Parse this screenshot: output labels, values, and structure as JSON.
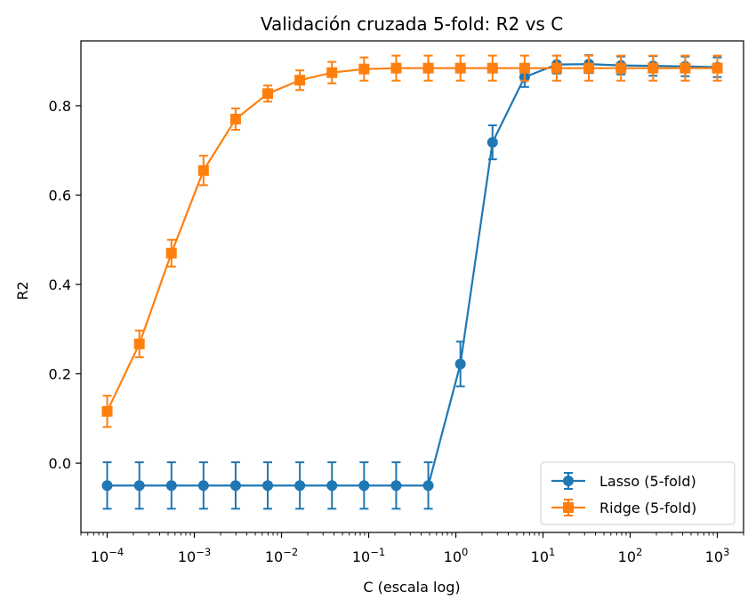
{
  "chart_data": {
    "type": "line",
    "title": "Validación cruzada 5-fold: R2 vs C",
    "xlabel": "C (escala log)",
    "ylabel": "R2",
    "xscale": "log",
    "xlim": [
      5e-05,
      2000
    ],
    "ylim": [
      -0.155,
      0.945
    ],
    "grid": false,
    "legend_position": "lower-right",
    "x": [
      0.0001,
      0.000234,
      0.000546,
      0.001274,
      0.002976,
      0.006952,
      0.016238,
      0.037927,
      0.088587,
      0.206914,
      0.483293,
      1.128838,
      2.636651,
      6.158482,
      14.384499,
      33.598183,
      78.475997,
      183.298071,
      428.13324,
      1000
    ],
    "x_ticks": [
      {
        "value": 0.0001,
        "base": "10",
        "exp": "−4"
      },
      {
        "value": 0.001,
        "base": "10",
        "exp": "−3"
      },
      {
        "value": 0.01,
        "base": "10",
        "exp": "−2"
      },
      {
        "value": 0.1,
        "base": "10",
        "exp": "−1"
      },
      {
        "value": 1,
        "base": "10",
        "exp": "0"
      },
      {
        "value": 10,
        "base": "10",
        "exp": "1"
      },
      {
        "value": 100,
        "base": "10",
        "exp": "2"
      },
      {
        "value": 1000,
        "base": "10",
        "exp": "3"
      }
    ],
    "y_ticks": [
      {
        "value": 0.0,
        "label": "0.0"
      },
      {
        "value": 0.2,
        "label": "0.2"
      },
      {
        "value": 0.4,
        "label": "0.4"
      },
      {
        "value": 0.6,
        "label": "0.6"
      },
      {
        "value": 0.8,
        "label": "0.8"
      }
    ],
    "series": [
      {
        "name": "Lasso (5-fold)",
        "color": "#1f77b4",
        "marker": "circle",
        "values": [
          -0.05,
          -0.05,
          -0.05,
          -0.05,
          -0.05,
          -0.05,
          -0.05,
          -0.05,
          -0.05,
          -0.05,
          -0.05,
          0.222,
          0.718,
          0.864,
          0.892,
          0.893,
          0.89,
          0.889,
          0.888,
          0.886
        ],
        "errors": [
          0.052,
          0.052,
          0.052,
          0.052,
          0.052,
          0.052,
          0.052,
          0.052,
          0.052,
          0.052,
          0.052,
          0.05,
          0.038,
          0.022,
          0.02,
          0.02,
          0.02,
          0.022,
          0.022,
          0.022
        ]
      },
      {
        "name": "Ridge (5-fold)",
        "color": "#ff7f0e",
        "marker": "square",
        "values": [
          0.116,
          0.267,
          0.47,
          0.655,
          0.77,
          0.827,
          0.857,
          0.874,
          0.882,
          0.884,
          0.884,
          0.884,
          0.884,
          0.884,
          0.884,
          0.884,
          0.884,
          0.884,
          0.884,
          0.884
        ],
        "errors": [
          0.035,
          0.03,
          0.03,
          0.033,
          0.024,
          0.018,
          0.022,
          0.024,
          0.026,
          0.028,
          0.028,
          0.028,
          0.028,
          0.028,
          0.028,
          0.028,
          0.028,
          0.028,
          0.028,
          0.028
        ]
      }
    ]
  }
}
